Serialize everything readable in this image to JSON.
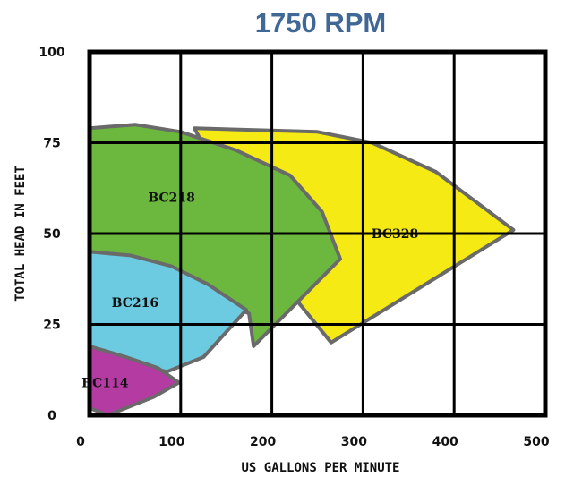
{
  "chart_data": {
    "type": "area",
    "title": "1750 RPM",
    "xlabel": "US GALLONS PER MINUTE",
    "ylabel": "TOTAL HEAD IN FEET",
    "xlim": [
      0,
      500
    ],
    "ylim": [
      0,
      100
    ],
    "x_ticks": [
      "0",
      "100",
      "200",
      "300",
      "400",
      "500"
    ],
    "y_ticks": [
      "0",
      "25",
      "50",
      "75",
      "100"
    ],
    "grid": true,
    "legend": "none",
    "series": [
      {
        "name": "BC328",
        "color": "#f5ea14",
        "points": [
          [
            115,
            79
          ],
          [
            250,
            78
          ],
          [
            310,
            75
          ],
          [
            380,
            67
          ],
          [
            465,
            51
          ],
          [
            265,
            20
          ],
          [
            200,
            40
          ],
          [
            130,
            72
          ]
        ]
      },
      {
        "name": "BC218",
        "color": "#6cb83f",
        "points": [
          [
            0,
            79
          ],
          [
            50,
            80
          ],
          [
            100,
            78
          ],
          [
            160,
            73
          ],
          [
            220,
            66
          ],
          [
            255,
            56
          ],
          [
            275,
            43
          ],
          [
            180,
            19
          ],
          [
            175,
            28
          ],
          [
            60,
            40
          ],
          [
            0,
            45
          ]
        ]
      },
      {
        "name": "BC216",
        "color": "#6ccbe0",
        "points": [
          [
            0,
            45
          ],
          [
            45,
            44
          ],
          [
            90,
            41
          ],
          [
            130,
            36
          ],
          [
            172,
            29
          ],
          [
            125,
            16
          ],
          [
            85,
            12
          ],
          [
            50,
            14
          ],
          [
            15,
            17
          ],
          [
            0,
            18
          ]
        ]
      },
      {
        "name": "BC114",
        "color": "#b33ba2",
        "points": [
          [
            0,
            19
          ],
          [
            40,
            16
          ],
          [
            75,
            13
          ],
          [
            98,
            9
          ],
          [
            70,
            5
          ],
          [
            20,
            0
          ],
          [
            0,
            2
          ]
        ]
      }
    ],
    "label_positions": [
      {
        "name": "BC218",
        "x": 90,
        "y": 60
      },
      {
        "name": "BC328",
        "x": 335,
        "y": 50
      },
      {
        "name": "BC216",
        "x": 50,
        "y": 31
      },
      {
        "name": "BC114",
        "x": 17,
        "y": 9
      }
    ]
  }
}
